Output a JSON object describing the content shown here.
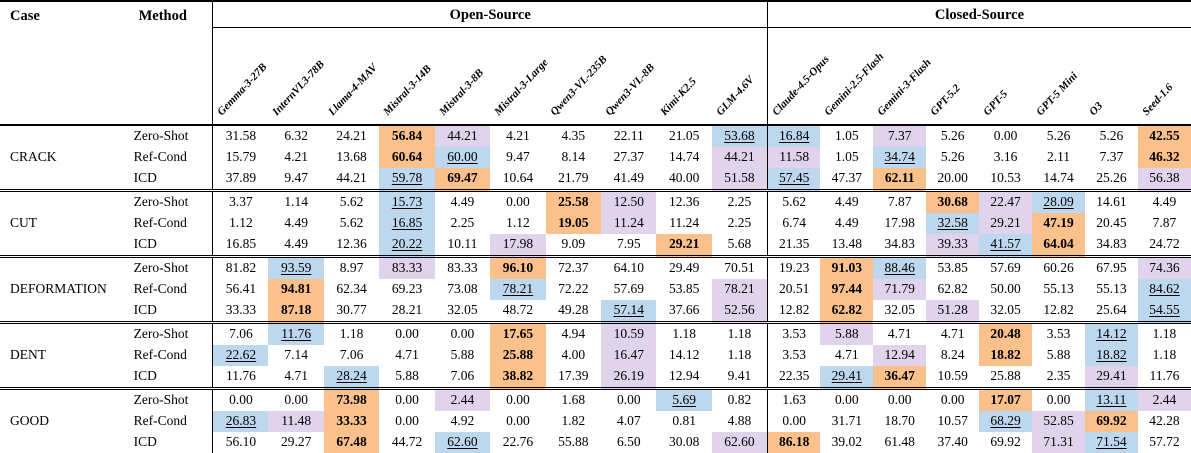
{
  "table": {
    "case_label": "Case",
    "method_label": "Method",
    "groups": [
      {
        "label": "Open-Source",
        "models": [
          "Gemma-3-27B",
          "InternVL3-78B",
          "Llama-4-MAV",
          "Mistral-3-14B",
          "Mistral-3-8B",
          "Mistral-3-Large",
          "Qwen3-VL-235B",
          "Qwen3-VL-8B",
          "Kimi-K2.5",
          "GLM-4.6V"
        ]
      },
      {
        "label": "Closed-Source",
        "models": [
          "Claude-4.5-Opus",
          "Gemini-2.5-Flash",
          "Gemini-3-Flash",
          "GPT-5.2",
          "GPT-5",
          "GPT-5 Mini",
          "O3",
          "Seed-1.6"
        ]
      }
    ],
    "highlight_colors": {
      "best_bold": "#FAC18D",
      "second_underline": "#BDD7EE",
      "third": "#E1D3EC"
    },
    "cases": [
      {
        "name": "CRACK",
        "rows": [
          {
            "method": "Zero-Shot",
            "open": [
              "31.58",
              "6.32",
              "24.21",
              {
                "v": "56.84",
                "h": "best"
              },
              {
                "v": "44.21",
                "h": "third"
              },
              "4.21",
              "4.35",
              "22.11",
              "21.05",
              {
                "v": "53.68",
                "h": "second"
              }
            ],
            "closed": [
              {
                "v": "16.84",
                "h": "second"
              },
              "1.05",
              {
                "v": "7.37",
                "h": "third"
              },
              "5.26",
              "0.00",
              "5.26",
              "5.26",
              {
                "v": "42.55",
                "h": "best"
              }
            ]
          },
          {
            "method": "Ref-Cond",
            "open": [
              "15.79",
              "4.21",
              "13.68",
              {
                "v": "60.64",
                "h": "best"
              },
              {
                "v": "60.00",
                "h": "second"
              },
              "9.47",
              "8.14",
              "27.37",
              "14.74",
              {
                "v": "44.21",
                "h": "third"
              }
            ],
            "closed": [
              {
                "v": "11.58",
                "h": "third"
              },
              "1.05",
              {
                "v": "34.74",
                "h": "second"
              },
              "5.26",
              "3.16",
              "2.11",
              "7.37",
              {
                "v": "46.32",
                "h": "best"
              }
            ]
          },
          {
            "method": "ICD",
            "open": [
              "37.89",
              "9.47",
              "44.21",
              {
                "v": "59.78",
                "h": "second"
              },
              {
                "v": "69.47",
                "h": "best"
              },
              "10.64",
              "21.79",
              "41.49",
              "40.00",
              {
                "v": "51.58",
                "h": "third"
              }
            ],
            "closed": [
              {
                "v": "57.45",
                "h": "second"
              },
              "47.37",
              {
                "v": "62.11",
                "h": "best"
              },
              "20.00",
              "10.53",
              "14.74",
              "25.26",
              {
                "v": "56.38",
                "h": "third"
              }
            ]
          }
        ]
      },
      {
        "name": "CUT",
        "rows": [
          {
            "method": "Zero-Shot",
            "open": [
              "3.37",
              "1.14",
              "5.62",
              {
                "v": "15.73",
                "h": "second"
              },
              "4.49",
              "0.00",
              {
                "v": "25.58",
                "h": "best"
              },
              {
                "v": "12.50",
                "h": "third"
              },
              "12.36",
              "2.25"
            ],
            "closed": [
              "5.62",
              "4.49",
              "7.87",
              {
                "v": "30.68",
                "h": "best"
              },
              {
                "v": "22.47",
                "h": "third"
              },
              {
                "v": "28.09",
                "h": "second"
              },
              "14.61",
              "4.49"
            ]
          },
          {
            "method": "Ref-Cond",
            "open": [
              "1.12",
              "4.49",
              "5.62",
              {
                "v": "16.85",
                "h": "second"
              },
              "2.25",
              "1.12",
              {
                "v": "19.05",
                "h": "best"
              },
              {
                "v": "11.24",
                "h": "third"
              },
              "11.24",
              "2.25"
            ],
            "closed": [
              "6.74",
              "4.49",
              "17.98",
              {
                "v": "32.58",
                "h": "second"
              },
              {
                "v": "29.21",
                "h": "third"
              },
              {
                "v": "47.19",
                "h": "best"
              },
              "20.45",
              "7.87"
            ]
          },
          {
            "method": "ICD",
            "open": [
              "16.85",
              "4.49",
              "12.36",
              {
                "v": "20.22",
                "h": "second"
              },
              "10.11",
              {
                "v": "17.98",
                "h": "third"
              },
              "9.09",
              "7.95",
              {
                "v": "29.21",
                "h": "best"
              },
              "5.68"
            ],
            "closed": [
              "21.35",
              "13.48",
              "34.83",
              {
                "v": "39.33",
                "h": "third"
              },
              {
                "v": "41.57",
                "h": "second"
              },
              {
                "v": "64.04",
                "h": "best"
              },
              "34.83",
              "24.72"
            ]
          }
        ]
      },
      {
        "name": "DEFORMATION",
        "rows": [
          {
            "method": "Zero-Shot",
            "open": [
              "81.82",
              {
                "v": "93.59",
                "h": "second"
              },
              "8.97",
              {
                "v": "83.33",
                "h": "third"
              },
              "83.33",
              {
                "v": "96.10",
                "h": "best"
              },
              "72.37",
              "64.10",
              "29.49",
              "70.51"
            ],
            "closed": [
              "19.23",
              {
                "v": "91.03",
                "h": "best"
              },
              {
                "v": "88.46",
                "h": "second"
              },
              "53.85",
              "57.69",
              "60.26",
              "67.95",
              {
                "v": "74.36",
                "h": "third"
              }
            ]
          },
          {
            "method": "Ref-Cond",
            "open": [
              "56.41",
              {
                "v": "94.81",
                "h": "best"
              },
              "62.34",
              "69.23",
              "73.08",
              {
                "v": "78.21",
                "h": "second"
              },
              "72.22",
              "57.69",
              "53.85",
              {
                "v": "78.21",
                "h": "third"
              }
            ],
            "closed": [
              "20.51",
              {
                "v": "97.44",
                "h": "best"
              },
              {
                "v": "71.79",
                "h": "third"
              },
              "62.82",
              "50.00",
              "55.13",
              "55.13",
              {
                "v": "84.62",
                "h": "second"
              }
            ]
          },
          {
            "method": "ICD",
            "open": [
              "33.33",
              {
                "v": "87.18",
                "h": "best"
              },
              "30.77",
              "28.21",
              "32.05",
              "48.72",
              "49.28",
              {
                "v": "57.14",
                "h": "second"
              },
              "37.66",
              {
                "v": "52.56",
                "h": "third"
              }
            ],
            "closed": [
              "12.82",
              {
                "v": "62.82",
                "h": "best"
              },
              "32.05",
              {
                "v": "51.28",
                "h": "third"
              },
              "32.05",
              "12.82",
              "25.64",
              {
                "v": "54.55",
                "h": "second"
              }
            ]
          }
        ]
      },
      {
        "name": "DENT",
        "rows": [
          {
            "method": "Zero-Shot",
            "open": [
              "7.06",
              {
                "v": "11.76",
                "h": "second"
              },
              "1.18",
              "0.00",
              "0.00",
              {
                "v": "17.65",
                "h": "best"
              },
              "4.94",
              {
                "v": "10.59",
                "h": "third"
              },
              "1.18",
              "1.18"
            ],
            "closed": [
              "3.53",
              {
                "v": "5.88",
                "h": "third"
              },
              "4.71",
              "4.71",
              {
                "v": "20.48",
                "h": "best"
              },
              "3.53",
              {
                "v": "14.12",
                "h": "second"
              },
              "1.18"
            ]
          },
          {
            "method": "Ref-Cond",
            "open": [
              {
                "v": "22.62",
                "h": "second"
              },
              "7.14",
              "7.06",
              "4.71",
              "5.88",
              {
                "v": "25.88",
                "h": "best"
              },
              "4.00",
              {
                "v": "16.47",
                "h": "third"
              },
              "14.12",
              "1.18"
            ],
            "closed": [
              "3.53",
              "4.71",
              {
                "v": "12.94",
                "h": "third"
              },
              "8.24",
              {
                "v": "18.82",
                "h": "best"
              },
              "5.88",
              {
                "v": "18.82",
                "h": "second"
              },
              "1.18"
            ]
          },
          {
            "method": "ICD",
            "open": [
              "11.76",
              "4.71",
              {
                "v": "28.24",
                "h": "second"
              },
              "5.88",
              "7.06",
              {
                "v": "38.82",
                "h": "best"
              },
              "17.39",
              {
                "v": "26.19",
                "h": "third"
              },
              "12.94",
              "9.41"
            ],
            "closed": [
              "22.35",
              {
                "v": "29.41",
                "h": "second"
              },
              {
                "v": "36.47",
                "h": "best"
              },
              "10.59",
              "25.88",
              "2.35",
              {
                "v": "29.41",
                "h": "third"
              },
              "11.76"
            ]
          }
        ]
      },
      {
        "name": "GOOD",
        "rows": [
          {
            "method": "Zero-Shot",
            "open": [
              "0.00",
              "0.00",
              {
                "v": "73.98",
                "h": "best"
              },
              "0.00",
              {
                "v": "2.44",
                "h": "third"
              },
              "0.00",
              "1.68",
              "0.00",
              {
                "v": "5.69",
                "h": "second"
              },
              "0.82"
            ],
            "closed": [
              "1.63",
              "0.00",
              "0.00",
              "0.00",
              {
                "v": "17.07",
                "h": "best"
              },
              "0.00",
              {
                "v": "13.11",
                "h": "second"
              },
              {
                "v": "2.44",
                "h": "third"
              }
            ]
          },
          {
            "method": "Ref-Cond",
            "open": [
              {
                "v": "26.83",
                "h": "second"
              },
              {
                "v": "11.48",
                "h": "third"
              },
              {
                "v": "33.33",
                "h": "best"
              },
              "0.00",
              "4.92",
              "0.00",
              "1.82",
              "4.07",
              "0.81",
              "4.88"
            ],
            "closed": [
              "0.00",
              "31.71",
              "18.70",
              "10.57",
              {
                "v": "68.29",
                "h": "second"
              },
              {
                "v": "52.85",
                "h": "third"
              },
              {
                "v": "69.92",
                "h": "best"
              },
              "42.28"
            ]
          },
          {
            "method": "ICD",
            "open": [
              "56.10",
              "29.27",
              {
                "v": "67.48",
                "h": "best"
              },
              "44.72",
              {
                "v": "62.60",
                "h": "second"
              },
              "22.76",
              "55.88",
              "6.50",
              "30.08",
              {
                "v": "62.60",
                "h": "third"
              }
            ],
            "closed": [
              {
                "v": "86.18",
                "h": "best"
              },
              "39.02",
              "61.48",
              "37.40",
              "69.92",
              {
                "v": "71.31",
                "h": "third"
              },
              {
                "v": "71.54",
                "h": "second"
              },
              "57.72"
            ]
          }
        ]
      }
    ]
  }
}
